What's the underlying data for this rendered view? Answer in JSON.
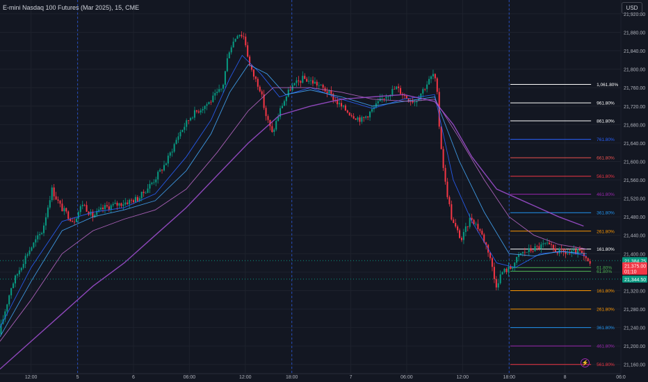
{
  "title": "E-mini Nasdaq 100 Futures (Mar 2025), 15, CME",
  "currency": "USD",
  "chart_data": {
    "type": "candlestick",
    "y_range": [
      21140,
      21950
    ],
    "y_ticks": [
      21160,
      21200,
      21240,
      21280,
      21320,
      21360,
      21400,
      21440,
      21480,
      21520,
      21560,
      21600,
      21640,
      21680,
      21720,
      21760,
      21800,
      21840,
      21880,
      21920
    ],
    "y_tick_labels": [
      "21,160.00",
      "21,200.00",
      "21,240.00",
      "21,280.00",
      "21,320.00",
      "21,360.00",
      "21,400.00",
      "21,440.00",
      "21,480.00",
      "21,520.00",
      "21,560.00",
      "21,600.00",
      "21,640.00",
      "21,680.00",
      "21,720.00",
      "21,760.00",
      "21,800.00",
      "21,840.00",
      "21,880.00",
      "21,920.00"
    ],
    "x_ticks": [
      {
        "t": 0.05,
        "label": "12:00"
      },
      {
        "t": 0.125,
        "label": "5"
      },
      {
        "t": 0.215,
        "label": "6"
      },
      {
        "t": 0.305,
        "label": "06:00"
      },
      {
        "t": 0.395,
        "label": "12:00"
      },
      {
        "t": 0.47,
        "label": "18:00"
      },
      {
        "t": 0.565,
        "label": "7"
      },
      {
        "t": 0.655,
        "label": "06:00"
      },
      {
        "t": 0.745,
        "label": "12:00"
      },
      {
        "t": 0.82,
        "label": "18:00"
      },
      {
        "t": 0.91,
        "label": "8"
      },
      {
        "t": 1.0,
        "label": "06:0"
      }
    ],
    "session_lines": [
      0.125,
      0.47,
      0.82
    ],
    "price_path": [
      [
        0,
        21225
      ],
      [
        0.02,
        21330
      ],
      [
        0.045,
        21400
      ],
      [
        0.07,
        21450
      ],
      [
        0.085,
        21540
      ],
      [
        0.1,
        21500
      ],
      [
        0.12,
        21470
      ],
      [
        0.135,
        21510
      ],
      [
        0.15,
        21480
      ],
      [
        0.17,
        21500
      ],
      [
        0.2,
        21510
      ],
      [
        0.225,
        21520
      ],
      [
        0.25,
        21560
      ],
      [
        0.27,
        21600
      ],
      [
        0.29,
        21660
      ],
      [
        0.31,
        21700
      ],
      [
        0.34,
        21730
      ],
      [
        0.36,
        21760
      ],
      [
        0.37,
        21840
      ],
      [
        0.385,
        21880
      ],
      [
        0.395,
        21870
      ],
      [
        0.405,
        21800
      ],
      [
        0.42,
        21760
      ],
      [
        0.43,
        21700
      ],
      [
        0.44,
        21660
      ],
      [
        0.455,
        21720
      ],
      [
        0.47,
        21760
      ],
      [
        0.49,
        21780
      ],
      [
        0.51,
        21770
      ],
      [
        0.53,
        21750
      ],
      [
        0.55,
        21720
      ],
      [
        0.57,
        21700
      ],
      [
        0.585,
        21690
      ],
      [
        0.6,
        21710
      ],
      [
        0.62,
        21740
      ],
      [
        0.64,
        21760
      ],
      [
        0.655,
        21740
      ],
      [
        0.67,
        21730
      ],
      [
        0.685,
        21760
      ],
      [
        0.7,
        21790
      ],
      [
        0.705,
        21760
      ],
      [
        0.71,
        21660
      ],
      [
        0.718,
        21560
      ],
      [
        0.73,
        21470
      ],
      [
        0.745,
        21430
      ],
      [
        0.76,
        21480
      ],
      [
        0.775,
        21450
      ],
      [
        0.79,
        21400
      ],
      [
        0.8,
        21330
      ],
      [
        0.81,
        21360
      ],
      [
        0.825,
        21370
      ],
      [
        0.84,
        21400
      ],
      [
        0.86,
        21410
      ],
      [
        0.88,
        21420
      ],
      [
        0.9,
        21405
      ],
      [
        0.92,
        21400
      ],
      [
        0.935,
        21405
      ],
      [
        0.945,
        21385
      ],
      [
        0.952,
        21378
      ]
    ],
    "ma_series": [
      {
        "color": "#2962ff",
        "points": [
          [
            0,
            21240
          ],
          [
            0.05,
            21370
          ],
          [
            0.1,
            21470
          ],
          [
            0.15,
            21490
          ],
          [
            0.2,
            21500
          ],
          [
            0.25,
            21530
          ],
          [
            0.3,
            21610
          ],
          [
            0.34,
            21690
          ],
          [
            0.37,
            21780
          ],
          [
            0.39,
            21830
          ],
          [
            0.42,
            21790
          ],
          [
            0.45,
            21740
          ],
          [
            0.5,
            21760
          ],
          [
            0.55,
            21735
          ],
          [
            0.6,
            21715
          ],
          [
            0.65,
            21735
          ],
          [
            0.7,
            21745
          ],
          [
            0.73,
            21560
          ],
          [
            0.76,
            21470
          ],
          [
            0.8,
            21380
          ],
          [
            0.83,
            21370
          ],
          [
            0.87,
            21400
          ],
          [
            0.91,
            21405
          ],
          [
            0.945,
            21395
          ]
        ]
      },
      {
        "color": "#42a5f5",
        "points": [
          [
            0,
            21220
          ],
          [
            0.05,
            21340
          ],
          [
            0.1,
            21450
          ],
          [
            0.15,
            21480
          ],
          [
            0.2,
            21495
          ],
          [
            0.25,
            21515
          ],
          [
            0.3,
            21580
          ],
          [
            0.34,
            21660
          ],
          [
            0.37,
            21750
          ],
          [
            0.4,
            21810
          ],
          [
            0.43,
            21790
          ],
          [
            0.46,
            21745
          ],
          [
            0.5,
            21755
          ],
          [
            0.55,
            21740
          ],
          [
            0.6,
            21720
          ],
          [
            0.65,
            21730
          ],
          [
            0.7,
            21740
          ],
          [
            0.74,
            21600
          ],
          [
            0.78,
            21490
          ],
          [
            0.82,
            21400
          ],
          [
            0.86,
            21395
          ],
          [
            0.9,
            21405
          ],
          [
            0.945,
            21400
          ]
        ]
      },
      {
        "color": "#ba68c8",
        "points": [
          [
            0,
            21210
          ],
          [
            0.05,
            21300
          ],
          [
            0.1,
            21400
          ],
          [
            0.15,
            21450
          ],
          [
            0.2,
            21475
          ],
          [
            0.25,
            21495
          ],
          [
            0.3,
            21540
          ],
          [
            0.35,
            21620
          ],
          [
            0.4,
            21710
          ],
          [
            0.44,
            21760
          ],
          [
            0.5,
            21760
          ],
          [
            0.55,
            21750
          ],
          [
            0.6,
            21735
          ],
          [
            0.66,
            21730
          ],
          [
            0.7,
            21735
          ],
          [
            0.74,
            21650
          ],
          [
            0.78,
            21560
          ],
          [
            0.82,
            21480
          ],
          [
            0.86,
            21440
          ],
          [
            0.9,
            21420
          ],
          [
            0.945,
            21410
          ]
        ]
      },
      {
        "color": "#9c4dcc",
        "points": [
          [
            0,
            21150
          ],
          [
            0.05,
            21210
          ],
          [
            0.1,
            21270
          ],
          [
            0.15,
            21330
          ],
          [
            0.2,
            21380
          ],
          [
            0.25,
            21440
          ],
          [
            0.3,
            21500
          ],
          [
            0.35,
            21570
          ],
          [
            0.4,
            21640
          ],
          [
            0.45,
            21700
          ],
          [
            0.5,
            21720
          ],
          [
            0.55,
            21735
          ],
          [
            0.6,
            21740
          ],
          [
            0.65,
            21745
          ],
          [
            0.7,
            21730
          ],
          [
            0.73,
            21680
          ],
          [
            0.76,
            21610
          ],
          [
            0.8,
            21540
          ],
          [
            0.85,
            21510
          ],
          [
            0.9,
            21480
          ],
          [
            0.94,
            21460
          ]
        ]
      }
    ],
    "fib_levels": [
      {
        "label": "1,061.80%",
        "price": 21767,
        "color": "#ffffff"
      },
      {
        "label": "961.80%",
        "price": 21727,
        "color": "#ffffff"
      },
      {
        "label": "861.80%",
        "price": 21688,
        "color": "#ffffff"
      },
      {
        "label": "761.80%",
        "price": 21648,
        "color": "#2962ff"
      },
      {
        "label": "661.80%",
        "price": 21608,
        "color": "#ef5350"
      },
      {
        "label": "561.80%",
        "price": 21568,
        "color": "#f23645"
      },
      {
        "label": "461.80%",
        "price": 21529,
        "color": "#9c27b0"
      },
      {
        "label": "361.80%",
        "price": 21489,
        "color": "#2196f3"
      },
      {
        "label": "261.80%",
        "price": 21449,
        "color": "#ff9800"
      },
      {
        "label": "161.80%",
        "price": 21410,
        "color": "#ffffff"
      },
      {
        "label": "61.80%",
        "price": 21370,
        "color": "#4caf50"
      },
      {
        "label": "61.80%",
        "price": 21362,
        "color": "#4caf50"
      },
      {
        "label": "161.80%",
        "price": 21320,
        "color": "#ff9800"
      },
      {
        "label": "261.80%",
        "price": 21280,
        "color": "#ff9800"
      },
      {
        "label": "361.80%",
        "price": 21240,
        "color": "#2196f3"
      },
      {
        "label": "461.80%",
        "price": 21200,
        "color": "#9c27b0"
      },
      {
        "label": "561.80%",
        "price": 21160,
        "color": "#f23645"
      }
    ],
    "price_badges": [
      {
        "text": "21,384.75",
        "price": 21385,
        "color": "#089981"
      },
      {
        "text": "21,375.00",
        "price": 21374,
        "color": "#f23645"
      },
      {
        "text": "01:10",
        "price": 21362,
        "color": "#f23645"
      },
      {
        "text": "21,344.50",
        "price": 21345,
        "color": "#089981"
      }
    ],
    "dotted_lines": [
      21385,
      21345
    ],
    "grid": true,
    "candle_up_color": "#089981",
    "candle_down_color": "#f23645"
  }
}
